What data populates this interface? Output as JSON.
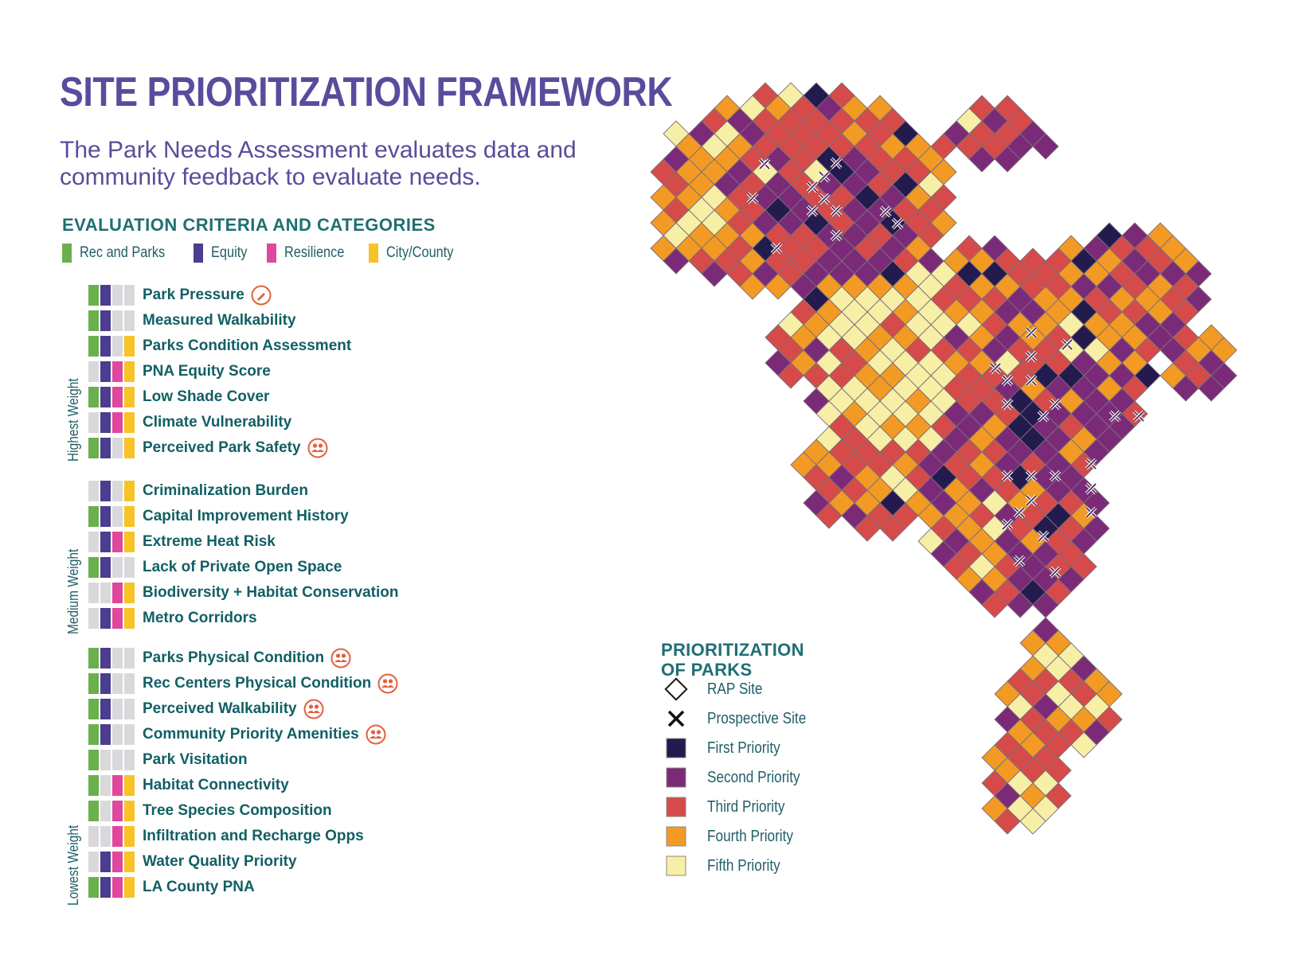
{
  "header": {
    "title": "SITE PRIORITIZATION FRAMEWORK",
    "subtitle": "The Park Needs Assessment evaluates data and community feedback to evaluate needs."
  },
  "criteria_section": {
    "heading": "EVALUATION CRITERIA AND CATEGORIES",
    "categories": [
      {
        "label": "Rec and Parks",
        "color": "#6ab04c"
      },
      {
        "label": "Equity",
        "color": "#4b3d8f"
      },
      {
        "label": "Resilience",
        "color": "#e0479e"
      },
      {
        "label": "City/County",
        "color": "#f7c325"
      }
    ],
    "weights": {
      "highest": "Highest Weight",
      "medium": "Medium Weight",
      "lowest": "Lowest Weight"
    },
    "criteria": [
      {
        "name": "Park Pressure",
        "cats": [
          1,
          1,
          0,
          0
        ],
        "icon": "pencil-icon"
      },
      {
        "name": "Measured Walkability",
        "cats": [
          1,
          1,
          0,
          0
        ]
      },
      {
        "name": "Parks Condition Assessment",
        "cats": [
          1,
          1,
          0,
          1
        ]
      },
      {
        "name": "PNA Equity Score",
        "cats": [
          0,
          1,
          1,
          1
        ]
      },
      {
        "name": "Low Shade Cover",
        "cats": [
          1,
          1,
          1,
          1
        ]
      },
      {
        "name": "Climate Vulnerability",
        "cats": [
          0,
          1,
          1,
          1
        ]
      },
      {
        "name": "Perceived Park Safety",
        "cats": [
          1,
          1,
          0,
          1
        ],
        "icon": "community-icon"
      },
      {
        "name": "Criminalization Burden",
        "cats": [
          0,
          1,
          0,
          1
        ]
      },
      {
        "name": "Capital Improvement History",
        "cats": [
          1,
          1,
          0,
          1
        ]
      },
      {
        "name": "Extreme Heat Risk",
        "cats": [
          0,
          1,
          1,
          1
        ]
      },
      {
        "name": "Lack of Private Open Space",
        "cats": [
          1,
          1,
          0,
          0
        ]
      },
      {
        "name": "Biodiversity + Habitat Conservation",
        "cats": [
          0,
          0,
          1,
          1
        ]
      },
      {
        "name": "Metro Corridors",
        "cats": [
          0,
          1,
          1,
          1
        ]
      },
      {
        "name": "Parks Physical Condition",
        "cats": [
          1,
          1,
          0,
          0
        ],
        "icon": "community-icon"
      },
      {
        "name": "Rec Centers Physical Condition",
        "cats": [
          1,
          1,
          0,
          0
        ],
        "icon": "community-icon"
      },
      {
        "name": "Perceived Walkability",
        "cats": [
          1,
          1,
          0,
          0
        ],
        "icon": "community-icon"
      },
      {
        "name": "Community Priority Amenities",
        "cats": [
          1,
          1,
          0,
          0
        ],
        "icon": "community-icon"
      },
      {
        "name": "Park Visitation",
        "cats": [
          1,
          0,
          0,
          0
        ]
      },
      {
        "name": "Habitat Connectivity",
        "cats": [
          1,
          0,
          1,
          1
        ]
      },
      {
        "name": "Tree Species Composition",
        "cats": [
          1,
          0,
          1,
          1
        ]
      },
      {
        "name": "Infiltration and Recharge Opps",
        "cats": [
          0,
          0,
          1,
          1
        ]
      },
      {
        "name": "Water Quality Priority",
        "cats": [
          0,
          1,
          1,
          1
        ]
      },
      {
        "name": "LA County PNA",
        "cats": [
          1,
          1,
          1,
          1
        ]
      }
    ]
  },
  "prioritization": {
    "title_line1": "PRIORITIZATION",
    "title_line2": "OF PARKS",
    "legend": [
      {
        "label": "RAP Site",
        "symbol": "diamond-outline"
      },
      {
        "label": "Prospective Site",
        "symbol": "x-mark"
      },
      {
        "label": "First Priority",
        "color": "#231a4e"
      },
      {
        "label": "Second Priority",
        "color": "#7b2a78"
      },
      {
        "label": "Third Priority",
        "color": "#d64b49"
      },
      {
        "label": "Fourth Priority",
        "color": "#f39a24"
      },
      {
        "label": "Fifth Priority",
        "color": "#f8efa6"
      }
    ]
  }
}
